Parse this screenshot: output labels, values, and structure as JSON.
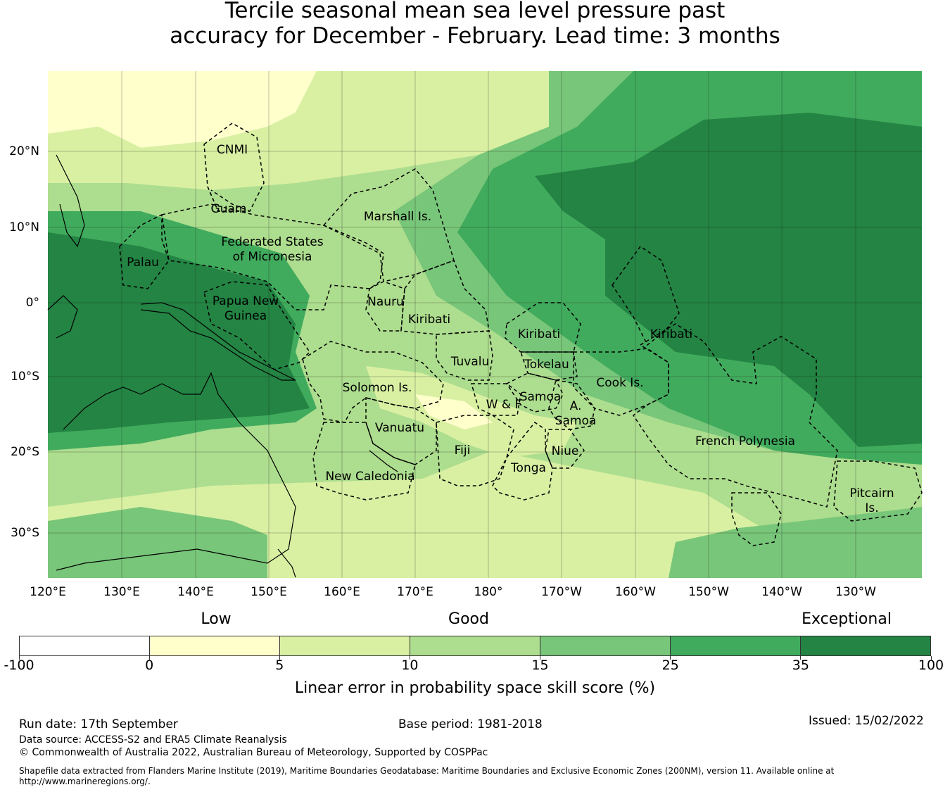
{
  "title_line1": "Tercile seasonal mean sea level pressure past",
  "title_line2": "accuracy for December - February. Lead time: 3 months",
  "map": {
    "lon_ticks": [
      "120°E",
      "130°E",
      "140°E",
      "150°E",
      "160°E",
      "170°E",
      "180°",
      "170°W",
      "160°W",
      "150°W",
      "140°W",
      "130°W"
    ],
    "lat_ticks": [
      "20°N",
      "10°N",
      "0°",
      "10°S",
      "20°S",
      "30°S"
    ],
    "region_labels": [
      "CNMI",
      "Guam",
      "Federated States of Micronesia",
      "Marshall Is.",
      "Palau",
      "Papua New Guinea",
      "Nauru",
      "Kiribati",
      "Kiribati",
      "Kiribati",
      "Tuvalu",
      "Tokelau",
      "Cook Is.",
      "Solomon Is.",
      "W & F",
      "Samoa",
      "A. Samoa",
      "Vanuatu",
      "Fiji",
      "Niue",
      "Tonga",
      "New Caledonia",
      "French Polynesia",
      "Pitcairn Is."
    ]
  },
  "colorbar": {
    "category_labels": [
      "Low",
      "Good",
      "Exceptional"
    ],
    "tick_labels": [
      "-100",
      "0",
      "5",
      "10",
      "15",
      "25",
      "35",
      "100"
    ],
    "colors": [
      "#ffffff",
      "#ffffcc",
      "#d9f0a3",
      "#addd8e",
      "#78c679",
      "#41ab5d",
      "#238443"
    ],
    "label": "Linear error in probability space skill score (%)"
  },
  "footer": {
    "run_date": "Run date: 17th September",
    "base_period": "Base period: 1981-2018",
    "issued": "Issued: 15/02/2022",
    "data_source": "Data source: ACCESS-S2 and ERA5 Climate Reanalysis",
    "copyright": "© Commonwealth of Australia 2022, Australian Bureau of Meteorology, Supported by COSPPac",
    "shapefile_line1": "Shapefile data extracted from Flanders Marine Institute (2019), Maritime Boundaries Geodatabase: Maritime Boundaries and Exclusive Economic Zones (200NM), version 11. Available online at",
    "shapefile_line2": "http://www.marineregions.org/."
  }
}
